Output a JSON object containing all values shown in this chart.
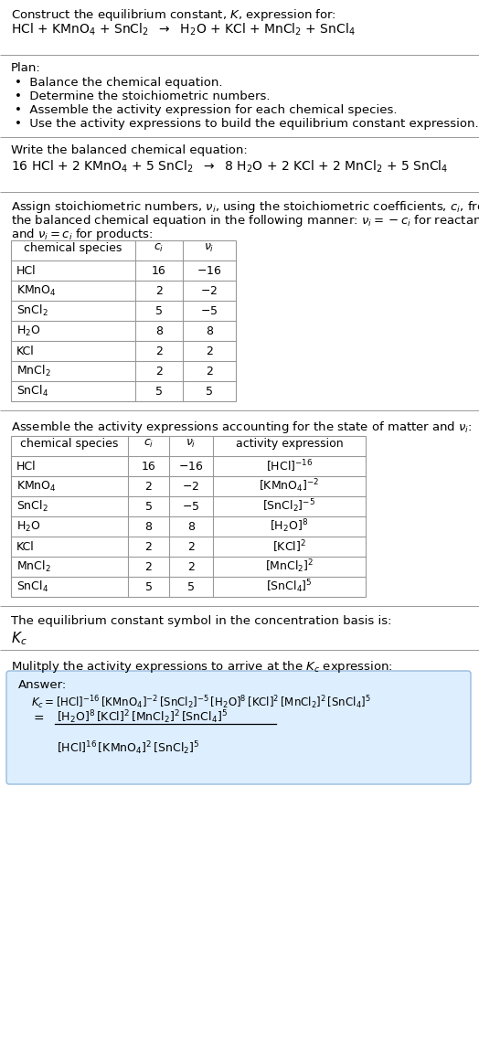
{
  "title_line1": "Construct the equilibrium constant, $K$, expression for:",
  "reaction_unbalanced": "HCl + KMnO$_4$ + SnCl$_2$  $\\rightarrow$  H$_2$O + KCl + MnCl$_2$ + SnCl$_4$",
  "plan_header": "Plan:",
  "plan_items": [
    "•  Balance the chemical equation.",
    "•  Determine the stoichiometric numbers.",
    "•  Assemble the activity expression for each chemical species.",
    "•  Use the activity expressions to build the equilibrium constant expression."
  ],
  "balanced_header": "Write the balanced chemical equation:",
  "reaction_balanced": "16 HCl + 2 KMnO$_4$ + 5 SnCl$_2$  $\\rightarrow$  8 H$_2$O + 2 KCl + 2 MnCl$_2$ + 5 SnCl$_4$",
  "stoich_intro_l1": "Assign stoichiometric numbers, $\\nu_i$, using the stoichiometric coefficients, $c_i$, from",
  "stoich_intro_l2": "the balanced chemical equation in the following manner: $\\nu_i = -c_i$ for reactants",
  "stoich_intro_l3": "and $\\nu_i = c_i$ for products:",
  "table1_headers": [
    "chemical species",
    "$c_i$",
    "$\\nu_i$"
  ],
  "table1_data": [
    [
      "HCl",
      "16",
      "$-16$"
    ],
    [
      "KMnO$_4$",
      "2",
      "$-2$"
    ],
    [
      "SnCl$_2$",
      "5",
      "$-5$"
    ],
    [
      "H$_2$O",
      "8",
      "8"
    ],
    [
      "KCl",
      "2",
      "2"
    ],
    [
      "MnCl$_2$",
      "2",
      "2"
    ],
    [
      "SnCl$_4$",
      "5",
      "5"
    ]
  ],
  "activity_intro": "Assemble the activity expressions accounting for the state of matter and $\\nu_i$:",
  "table2_headers": [
    "chemical species",
    "$c_i$",
    "$\\nu_i$",
    "activity expression"
  ],
  "table2_data": [
    [
      "HCl",
      "16",
      "$-16$",
      "$[\\mathrm{HCl}]^{-16}$"
    ],
    [
      "KMnO$_4$",
      "2",
      "$-2$",
      "$[\\mathrm{KMnO_4}]^{-2}$"
    ],
    [
      "SnCl$_2$",
      "5",
      "$-5$",
      "$[\\mathrm{SnCl_2}]^{-5}$"
    ],
    [
      "H$_2$O",
      "8",
      "8",
      "$[\\mathrm{H_2O}]^{8}$"
    ],
    [
      "KCl",
      "2",
      "2",
      "$[\\mathrm{KCl}]^{2}$"
    ],
    [
      "MnCl$_2$",
      "2",
      "2",
      "$[\\mathrm{MnCl_2}]^{2}$"
    ],
    [
      "SnCl$_4$",
      "5",
      "5",
      "$[\\mathrm{SnCl_4}]^{5}$"
    ]
  ],
  "kc_intro": "The equilibrium constant symbol in the concentration basis is:",
  "kc_symbol": "$K_c$",
  "multiply_intro": "Mulitply the activity expressions to arrive at the $K_c$ expression:",
  "answer_label": "Answer:",
  "kc_line1": "$K_c = [\\mathrm{HCl}]^{-16}\\,[\\mathrm{KMnO_4}]^{-2}\\,[\\mathrm{SnCl_2}]^{-5}\\,[\\mathrm{H_2O}]^{8}\\,[\\mathrm{KCl}]^{2}\\,[\\mathrm{MnCl_2}]^{2}\\,[\\mathrm{SnCl_4}]^{5}$",
  "kc_equals": "$=$",
  "kc_numerator": "$[\\mathrm{H_2O}]^{8}\\,[\\mathrm{KCl}]^{2}\\,[\\mathrm{MnCl_2}]^{2}\\,[\\mathrm{SnCl_4}]^{5}$",
  "kc_denominator": "$[\\mathrm{HCl}]^{16}\\,[\\mathrm{KMnO_4}]^{2}\\,[\\mathrm{SnCl_2}]^{5}$",
  "bg_color": "#ffffff",
  "text_color": "#000000",
  "table_line_color": "#999999",
  "answer_box_facecolor": "#ddeeff",
  "answer_box_edgecolor": "#99bbdd",
  "font_size": 9.5,
  "font_size_small": 9.0
}
